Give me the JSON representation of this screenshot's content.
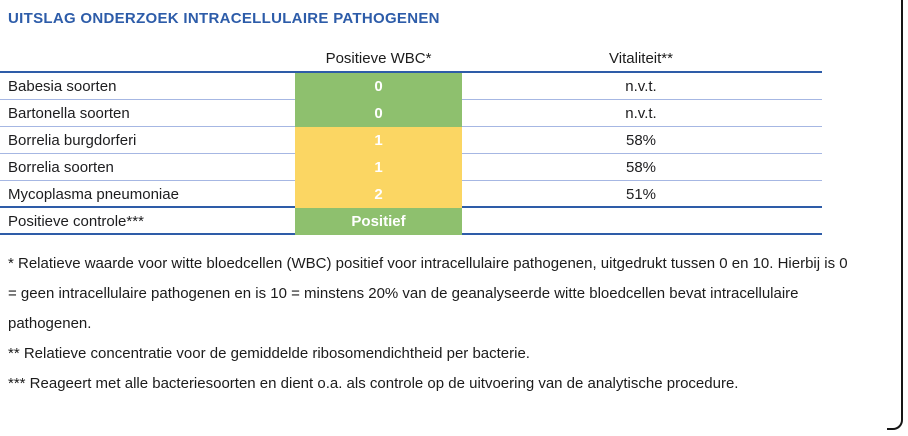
{
  "title": "UITSLAG ONDERZOEK INTRACELLULAIRE PATHOGENEN",
  "colors": {
    "title_blue": "#2D5CA9",
    "heavy_line_blue": "#2E5CA8",
    "light_line_blue": "#A6B7E3",
    "result_green": "#8EC06E",
    "result_yellow": "#FBD663",
    "value_text": "#FFFFFF",
    "page_border": "#161616"
  },
  "table": {
    "header": {
      "name": "",
      "wbc": "Positieve WBC*",
      "vitality": "Vitaliteit**"
    },
    "rows": [
      {
        "name": "Babesia soorten",
        "wbc": "0",
        "wbc_bg": "#8EC06E",
        "vitality": "n.v.t."
      },
      {
        "name": "Bartonella soorten",
        "wbc": "0",
        "wbc_bg": "#8EC06E",
        "vitality": "n.v.t."
      },
      {
        "name": "Borrelia burgdorferi",
        "wbc": "1",
        "wbc_bg": "#FBD663",
        "vitality": "58%"
      },
      {
        "name": "Borrelia soorten",
        "wbc": "1",
        "wbc_bg": "#FBD663",
        "vitality": "58%"
      },
      {
        "name": "Mycoplasma pneumoniae",
        "wbc": "2",
        "wbc_bg": "#FBD663",
        "vitality": "51%"
      },
      {
        "name": "Positieve controle***",
        "wbc": "Positief",
        "wbc_bg": "#8EC06E",
        "vitality": ""
      }
    ]
  },
  "footnotes": [
    "* Relatieve waarde voor witte bloedcellen (WBC) positief voor intracellulaire pathogenen, uitgedrukt tussen 0 en 10. Hierbij is 0 = geen intracellulaire pathogenen en is 10 = minstens 20% van de geanalyseerde witte bloedcellen bevat intracellulaire pathogenen.",
    "** Relatieve concentratie voor de gemiddelde ribosomendichtheid per bacterie.",
    "*** Reageert met alle bacteriesoorten en dient o.a. als controle op de uitvoering van de analytische procedure."
  ]
}
